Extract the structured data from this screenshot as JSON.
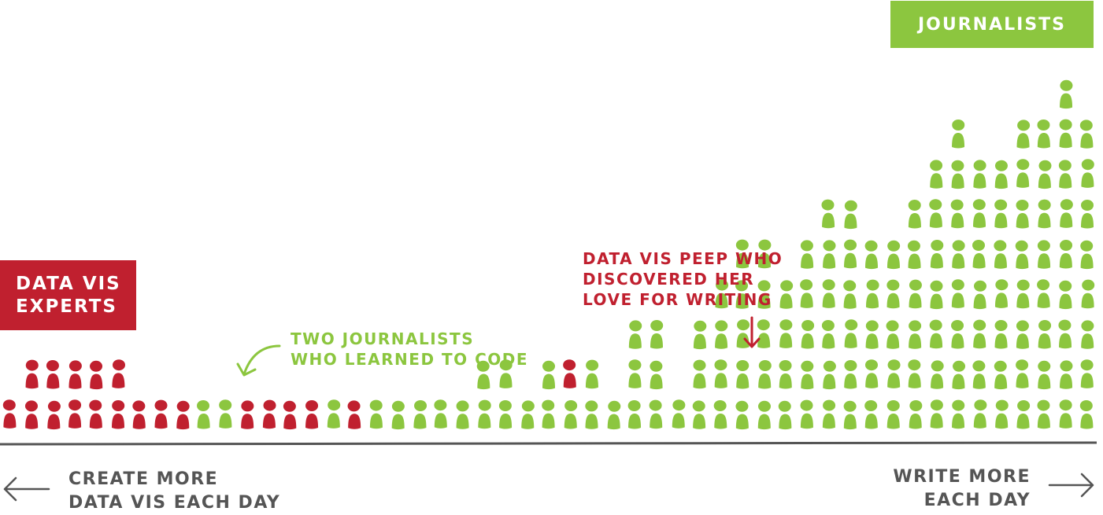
{
  "labels": {
    "journalists": "JOURNALISTS",
    "experts_line1": "DATA VIS",
    "experts_line2": "EXPERTS"
  },
  "annotations": {
    "two_journalists_line1": "TWO JOURNALISTS",
    "two_journalists_line2": "WHO LEARNED TO CODE",
    "peep_line1": "DATA VIS PEEP WHO",
    "peep_line2": "DISCOVERED HER",
    "peep_line3": "LOVE FOR WRITING"
  },
  "axis": {
    "left_line1": "CREATE MORE",
    "left_line2": "DATA VIS EACH DAY",
    "right_line1": "WRITE MORE",
    "right_line2": "EACH DAY"
  },
  "colors": {
    "expert": "#c0202f",
    "journalist": "#8cc63f",
    "axis": "#555555"
  },
  "icons": {
    "person": "person-icon",
    "left_arrow": "arrow-left-icon",
    "right_arrow": "arrow-right-icon",
    "curved_arrow": "curved-arrow-icon",
    "down_arrow": "arrow-down-icon"
  },
  "chart_data": {
    "type": "pictogram",
    "series": [
      {
        "name": "DATA VIS EXPERTS",
        "color": "#c0202f"
      },
      {
        "name": "JOURNALISTS",
        "color": "#8cc63f"
      }
    ],
    "columns": [
      {
        "g": 0,
        "r": 1
      },
      {
        "g": 0,
        "r": 2
      },
      {
        "g": 0,
        "r": 2
      },
      {
        "g": 0,
        "r": 2
      },
      {
        "g": 0,
        "r": 2
      },
      {
        "g": 0,
        "r": 2
      },
      {
        "g": 0,
        "r": 1
      },
      {
        "g": 0,
        "r": 1
      },
      {
        "g": 0,
        "r": 1
      },
      {
        "g": 1,
        "r": 0
      },
      {
        "g": 1,
        "r": 0
      },
      {
        "g": 0,
        "r": 1
      },
      {
        "g": 0,
        "r": 1
      },
      {
        "g": 0,
        "r": 1
      },
      {
        "g": 0,
        "r": 1
      },
      {
        "g": 1,
        "r": 0
      },
      {
        "g": 0,
        "r": 1
      },
      {
        "g": 1,
        "r": 0
      },
      {
        "g": 1,
        "r": 0
      },
      {
        "g": 1,
        "r": 0
      },
      {
        "g": 1,
        "r": 0
      },
      {
        "g": 1,
        "r": 0
      },
      {
        "g": 2,
        "r": 0
      },
      {
        "g": 2,
        "r": 0
      },
      {
        "g": 1,
        "r": 0
      },
      {
        "g": 2,
        "r": 0
      },
      {
        "g": 1,
        "r": 1
      },
      {
        "g": 2,
        "r": 0
      },
      {
        "g": 1,
        "r": 0
      },
      {
        "g": 3,
        "r": 0
      },
      {
        "g": 3,
        "r": 0
      },
      {
        "g": 1,
        "r": 0
      },
      {
        "g": 3,
        "r": 0
      },
      {
        "g": 4,
        "r": 0
      },
      {
        "g": 5,
        "r": 0
      },
      {
        "g": 5,
        "r": 0
      },
      {
        "g": 4,
        "r": 0
      },
      {
        "g": 5,
        "r": 0
      },
      {
        "g": 6,
        "r": 0
      },
      {
        "g": 6,
        "r": 0
      },
      {
        "g": 5,
        "r": 0
      },
      {
        "g": 5,
        "r": 0
      },
      {
        "g": 6,
        "r": 0
      },
      {
        "g": 7,
        "r": 0
      },
      {
        "g": 8,
        "r": 0
      },
      {
        "g": 7,
        "r": 0
      },
      {
        "g": 7,
        "r": 0
      },
      {
        "g": 8,
        "r": 0
      },
      {
        "g": 8,
        "r": 0
      },
      {
        "g": 9,
        "r": 0
      },
      {
        "g": 8,
        "r": 0
      }
    ]
  }
}
